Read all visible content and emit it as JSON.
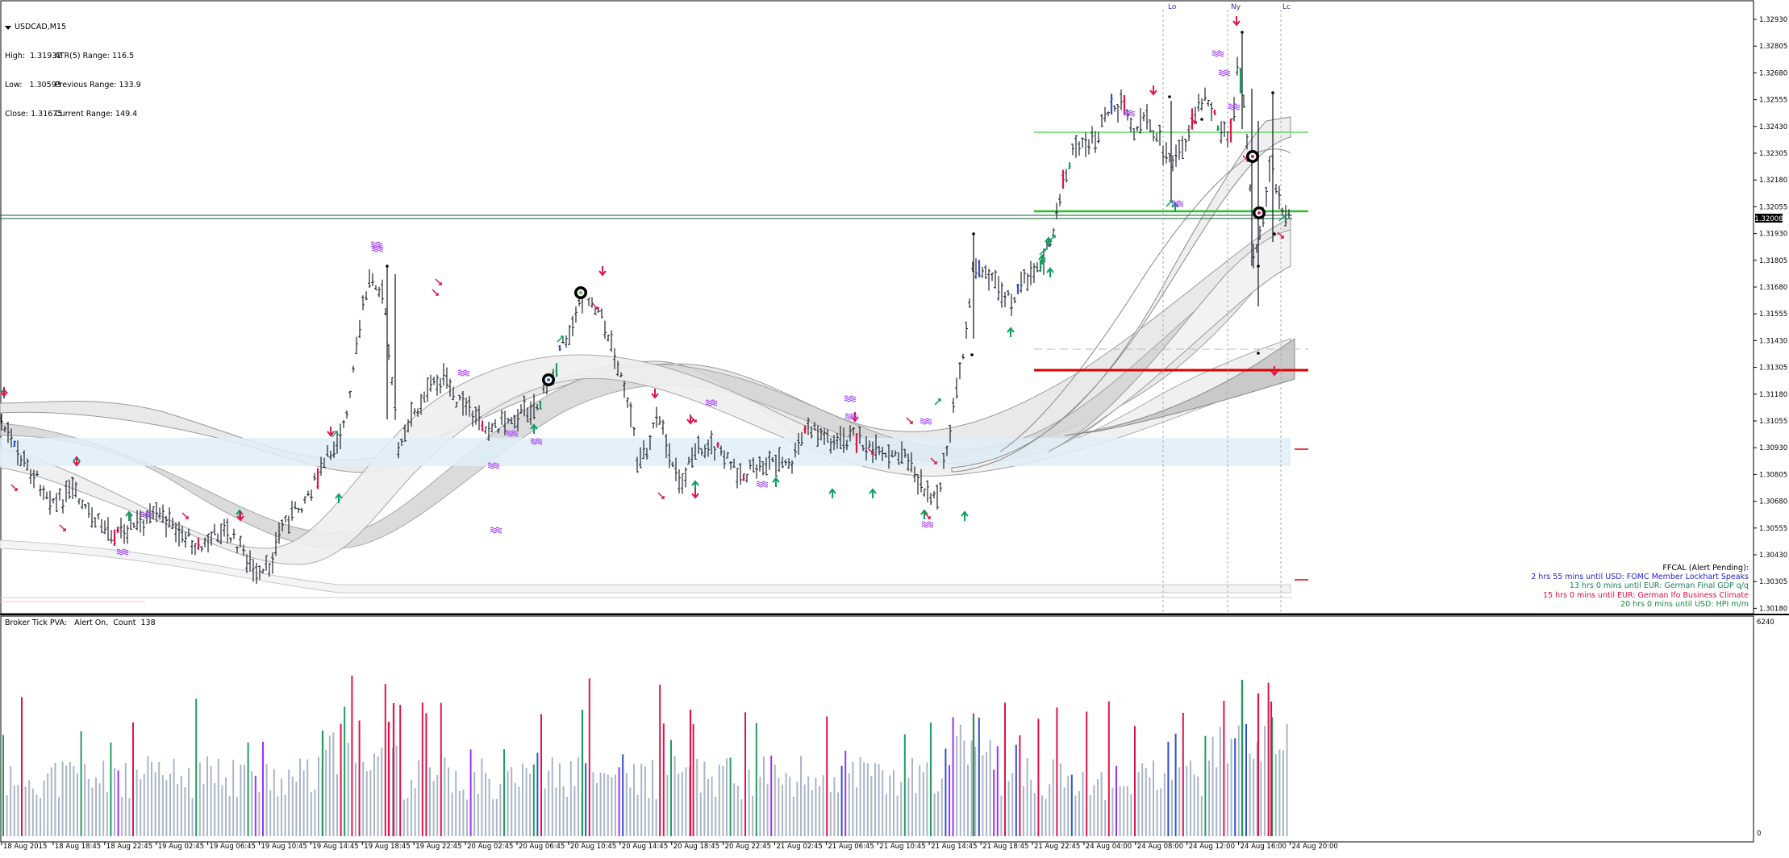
{
  "window": {
    "symbol": "USDCAD,M15",
    "high": "High:  1.31932",
    "atr": "ATR(5) Range: 116.5",
    "low": "Low:   1.30593",
    "prev_range": "Previous Range: 133.9",
    "close": "Close: 1.31675",
    "curr_range": "Current Range: 149.4"
  },
  "price_axis": {
    "labels": [
      "1.32930",
      "1.32805",
      "1.32680",
      "1.32555",
      "1.32430",
      "1.32305",
      "1.32180",
      "1.32055",
      "1.31930",
      "1.31805",
      "1.31680",
      "1.31555",
      "1.31430",
      "1.31305",
      "1.31180",
      "1.31055",
      "1.30930",
      "1.30805",
      "1.30680",
      "1.30555",
      "1.30430",
      "1.30305",
      "1.30180"
    ],
    "current_price": "1.32008"
  },
  "session_labels": [
    "Lo",
    "Ny",
    "Lc"
  ],
  "time_axis": [
    "18 Aug 2015",
    "18 Aug 18:45",
    "18 Aug 22:45",
    "19 Aug 02:45",
    "19 Aug 06:45",
    "19 Aug 10:45",
    "19 Aug 14:45",
    "19 Aug 18:45",
    "19 Aug 22:45",
    "20 Aug 02:45",
    "20 Aug 06:45",
    "20 Aug 10:45",
    "20 Aug 14:45",
    "20 Aug 18:45",
    "20 Aug 22:45",
    "21 Aug 02:45",
    "21 Aug 06:45",
    "21 Aug 10:45",
    "21 Aug 14:45",
    "21 Aug 18:45",
    "21 Aug 22:45",
    "24 Aug 04:00",
    "24 Aug 08:00",
    "24 Aug 12:00",
    "24 Aug 16:00",
    "24 Aug 20:00"
  ],
  "ffcal": {
    "title": "FFCAL  (Alert Pending):",
    "events": [
      {
        "text": "2 hrs 55 mins until USD: FOMC Member Lockhart Speaks",
        "color": "#1f1fd0"
      },
      {
        "text": "13 hrs 0 mins until EUR: German Final GDP q/q",
        "color": "#1a7f5a"
      },
      {
        "text": "15 hrs 0 mins until EUR: German Ifo Business Climate",
        "color": "#dd1144"
      },
      {
        "text": "20 hrs 0 mins until USD: HPI m/m",
        "color": "#1a8a3a"
      }
    ]
  },
  "volume_panel": {
    "label": "Broker Tick PVA:   Alert On,  Count  138",
    "max_label": "6240",
    "zero_label": "0"
  },
  "colors": {
    "bull_climax": "#1e9e5e",
    "bear_climax": "#e0144c",
    "rising_volume": "#3050d0",
    "churn": "#9b30ff",
    "normal_volume": "#a9b6c8",
    "up_arrow": "#0aa060",
    "down_arrow": "#e0144c",
    "bar": "#1e2430",
    "s1": "#ff0000",
    "r1": "#3ad33a"
  }
}
